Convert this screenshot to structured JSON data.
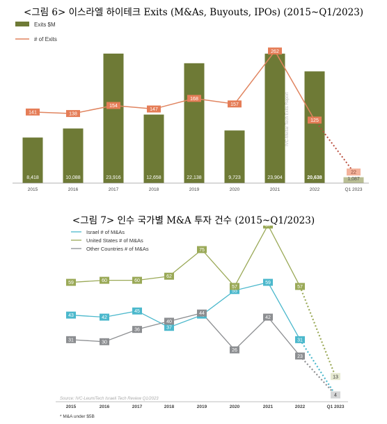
{
  "figure1": {
    "title": "<그림 6> 이스라엘 하이테크 Exits (M&As, Buyouts, IPOs) (2015~Q1/2023)",
    "legend": {
      "bars": "Exits  $M",
      "line": "# of Exits"
    },
    "watermark": "IVC-Meitar Tech Exits Report",
    "chart_data": {
      "type": "bar",
      "categories": [
        "2015",
        "2016",
        "2017",
        "2018",
        "2019",
        "2020",
        "2021",
        "2022",
        "Q1 2023"
      ],
      "series": [
        {
          "name": "Exits  $M",
          "type": "bar",
          "values": [
            8418,
            10088,
            23916,
            12658,
            22138,
            9723,
            23904,
            20638,
            1087
          ],
          "labels": [
            "8,418",
            "10,088",
            "23,916",
            "12,658",
            "22,138",
            "9,723",
            "23,904",
            "20,638",
            "1,087"
          ]
        },
        {
          "name": "# of Exits",
          "type": "line",
          "values": [
            141,
            138,
            154,
            147,
            168,
            157,
            262,
            125,
            22
          ],
          "labels": [
            "141",
            "138",
            "154",
            "147",
            "168",
            "157",
            "262",
            "125",
            "22"
          ],
          "dotted_last_segment": true
        }
      ],
      "colors": {
        "bar": "#6e7a36",
        "bar_last": "#b9be94",
        "line": "#e0845f",
        "label_bg": "#e57d57"
      },
      "ylim_bars": [
        0,
        27000
      ],
      "ylim_line": [
        0,
        290
      ],
      "grid": false,
      "legend_position": "top-left"
    }
  },
  "figure2": {
    "title": "<그림 7> 인수 국가별 M&A 투자 건수 (2015~Q1/2023)",
    "source": "Source: IVC-LeumiTech Israeli Tech Review Q1/2023",
    "footnote": "* M&A under $5B",
    "chart_data": {
      "type": "line",
      "categories": [
        "2015",
        "2016",
        "2017",
        "2018",
        "2019",
        "2020",
        "2021",
        "2022",
        "Q1 2023"
      ],
      "series": [
        {
          "name": "Israel # of M&As",
          "color": "#4bb8cc",
          "values": [
            43,
            42,
            45,
            37,
            43,
            55,
            59,
            31,
            4
          ]
        },
        {
          "name": "United States # of M&As",
          "color": "#9aa957",
          "values": [
            59,
            60,
            60,
            62,
            75,
            57,
            87,
            57,
            13
          ]
        },
        {
          "name": "Other Countries # of M&As",
          "color": "#8c8e91",
          "values": [
            31,
            30,
            36,
            40,
            44,
            26,
            42,
            23,
            4
          ]
        }
      ],
      "ylim": [
        0,
        95
      ],
      "grid": false,
      "legend_position": "top-left",
      "dotted_last_segment": true
    }
  }
}
